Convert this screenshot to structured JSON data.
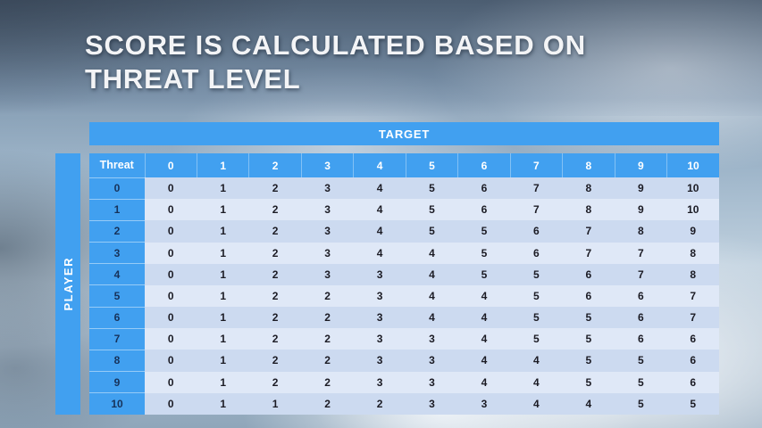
{
  "slide": {
    "title_line1": "SCORE IS CALCULATED BASED ON",
    "title_line2": "THREAT LEVEL",
    "target_label": "TARGET",
    "player_label": "PLAYER"
  },
  "table": {
    "corner_header": "Threat",
    "col_headers": [
      "0",
      "1",
      "2",
      "3",
      "4",
      "5",
      "6",
      "7",
      "8",
      "9",
      "10"
    ],
    "rows": [
      {
        "threat": "0",
        "values": [
          "0",
          "1",
          "2",
          "3",
          "4",
          "5",
          "6",
          "7",
          "8",
          "9",
          "10"
        ]
      },
      {
        "threat": "1",
        "values": [
          "0",
          "1",
          "2",
          "3",
          "4",
          "5",
          "6",
          "7",
          "8",
          "9",
          "10"
        ]
      },
      {
        "threat": "2",
        "values": [
          "0",
          "1",
          "2",
          "3",
          "4",
          "5",
          "5",
          "6",
          "7",
          "8",
          "9"
        ]
      },
      {
        "threat": "3",
        "values": [
          "0",
          "1",
          "2",
          "3",
          "4",
          "4",
          "5",
          "6",
          "7",
          "7",
          "8"
        ]
      },
      {
        "threat": "4",
        "values": [
          "0",
          "1",
          "2",
          "3",
          "3",
          "4",
          "5",
          "5",
          "6",
          "7",
          "8"
        ]
      },
      {
        "threat": "5",
        "values": [
          "0",
          "1",
          "2",
          "2",
          "3",
          "4",
          "4",
          "5",
          "6",
          "6",
          "7"
        ]
      },
      {
        "threat": "6",
        "values": [
          "0",
          "1",
          "2",
          "2",
          "3",
          "4",
          "4",
          "5",
          "5",
          "6",
          "7"
        ]
      },
      {
        "threat": "7",
        "values": [
          "0",
          "1",
          "2",
          "2",
          "3",
          "3",
          "4",
          "5",
          "5",
          "6",
          "6"
        ]
      },
      {
        "threat": "8",
        "values": [
          "0",
          "1",
          "2",
          "2",
          "3",
          "3",
          "4",
          "4",
          "5",
          "5",
          "6"
        ]
      },
      {
        "threat": "9",
        "values": [
          "0",
          "1",
          "2",
          "2",
          "3",
          "3",
          "4",
          "4",
          "5",
          "5",
          "6"
        ]
      },
      {
        "threat": "10",
        "values": [
          "0",
          "1",
          "1",
          "2",
          "2",
          "3",
          "3",
          "4",
          "4",
          "5",
          "5"
        ]
      }
    ]
  },
  "colors": {
    "accent": "#41a0f0",
    "band_dark": "#ccdaf0",
    "band_light": "#dfe8f7"
  }
}
